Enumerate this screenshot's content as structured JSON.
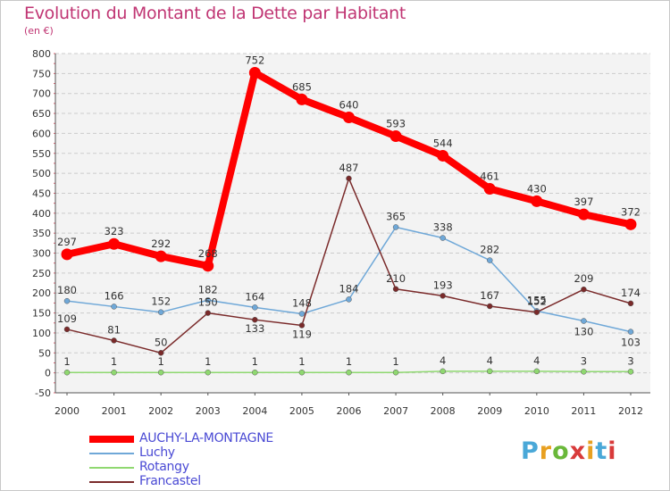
{
  "header": {
    "title": "Evolution du Montant de la Dette par Habitant",
    "subtitle": "(en €)"
  },
  "logo": {
    "letters": [
      "P",
      "r",
      "o",
      "x",
      "i",
      "t",
      "i"
    ],
    "colors": [
      "#4aa8d8",
      "#e8a020",
      "#6ab83a",
      "#d83a3a",
      "#e8a020",
      "#4aa8d8",
      "#d83a3a"
    ]
  },
  "chart_data": {
    "type": "line",
    "title": "Evolution du Montant de la Dette par Habitant",
    "subtitle": "(en €)",
    "xlabel": "",
    "ylabel": "",
    "x": [
      "2000",
      "2001",
      "2002",
      "2003",
      "2004",
      "2005",
      "2006",
      "2007",
      "2008",
      "2009",
      "2010",
      "2011",
      "2012"
    ],
    "ylim": [
      -50,
      800
    ],
    "yticks": [
      "-50",
      "0",
      "50",
      "100",
      "150",
      "200",
      "250",
      "300",
      "350",
      "400",
      "450",
      "500",
      "550",
      "600",
      "650",
      "700",
      "750",
      "800"
    ],
    "grid": "horizontal dashed",
    "legend_position": "bottom-left",
    "series": [
      {
        "name": "AUCHY-LA-MONTAGNE",
        "color": "#ff0000",
        "values": [
          297,
          323,
          292,
          268,
          752,
          685,
          640,
          593,
          544,
          461,
          430,
          397,
          372
        ]
      },
      {
        "name": "Luchy",
        "color": "#6fa8d8",
        "values": [
          180,
          166,
          152,
          182,
          164,
          148,
          184,
          365,
          338,
          282,
          155,
          130,
          103
        ]
      },
      {
        "name": "Rotangy",
        "color": "#8fd870",
        "values": [
          1,
          1,
          1,
          1,
          1,
          1,
          1,
          1,
          4,
          4,
          4,
          3,
          3
        ]
      },
      {
        "name": "Francastel",
        "color": "#7a2a2a",
        "values": [
          109,
          81,
          50,
          150,
          133,
          119,
          487,
          210,
          193,
          167,
          152,
          209,
          174
        ]
      }
    ]
  }
}
